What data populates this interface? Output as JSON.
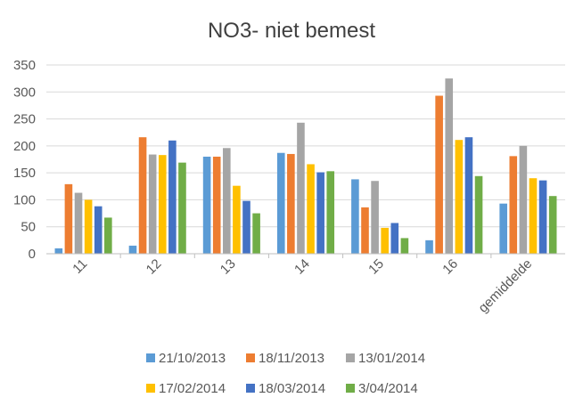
{
  "chart_data": {
    "type": "bar",
    "title": "NO3- niet bemest",
    "xlabel": "",
    "ylabel": "",
    "categories": [
      "11",
      "12",
      "13",
      "14",
      "15",
      "16",
      "gemiddelde"
    ],
    "ylim": [
      0,
      350
    ],
    "yticks": [
      0,
      50,
      100,
      150,
      200,
      250,
      300,
      350
    ],
    "grid": true,
    "legend_position": "bottom",
    "series": [
      {
        "name": "21/10/2013",
        "color": "#5b9bd5",
        "values": [
          10,
          15,
          180,
          187,
          138,
          25,
          93
        ]
      },
      {
        "name": "18/11/2013",
        "color": "#ed7d31",
        "values": [
          129,
          216,
          180,
          185,
          86,
          293,
          181
        ]
      },
      {
        "name": "13/01/2014",
        "color": "#a5a5a5",
        "values": [
          113,
          184,
          196,
          243,
          135,
          325,
          200
        ]
      },
      {
        "name": "17/02/2014",
        "color": "#ffc000",
        "values": [
          100,
          183,
          126,
          166,
          48,
          211,
          140
        ]
      },
      {
        "name": "18/03/2014",
        "color": "#4472c4",
        "values": [
          88,
          210,
          98,
          151,
          57,
          216,
          136
        ]
      },
      {
        "name": "3/04/2014",
        "color": "#70ad47",
        "values": [
          67,
          169,
          75,
          153,
          29,
          144,
          107
        ]
      }
    ]
  }
}
